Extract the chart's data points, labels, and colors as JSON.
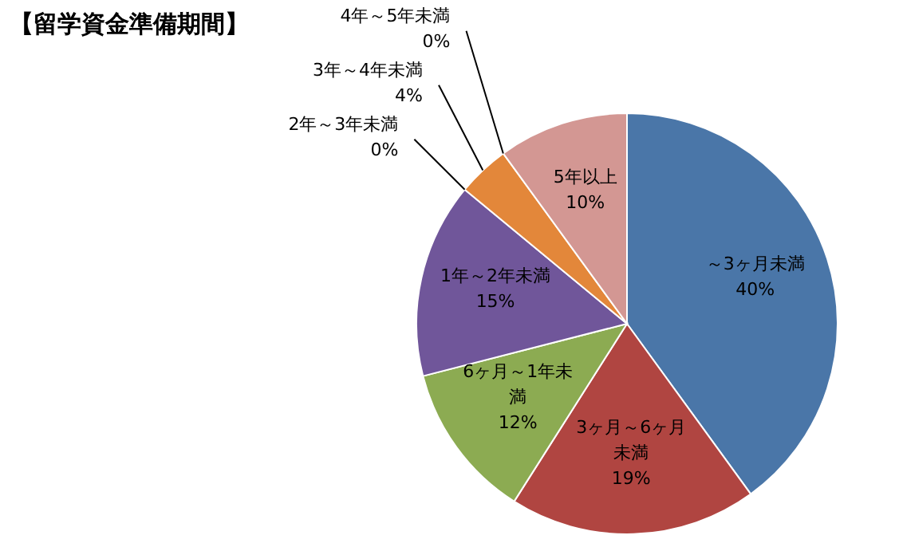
{
  "chart_data": {
    "type": "pie",
    "title": "【留学資金準備期間】",
    "categories": [
      "～3ヶ月未満",
      "3ヶ月～6ヶ月未満",
      "6ヶ月～1年未満",
      "1年～2年未満",
      "2年～3年未満",
      "3年～4年未満",
      "4年～5年未満",
      "5年以上"
    ],
    "values": [
      40,
      19,
      12,
      15,
      0,
      4,
      0,
      10
    ],
    "colors": [
      "#4a76a8",
      "#b04541",
      "#8cab52",
      "#70569a",
      null,
      "#e3873a",
      null,
      "#d39793"
    ],
    "value_labels": [
      "40%",
      "19%",
      "12%",
      "15%",
      "0%",
      "4%",
      "0%",
      "10%"
    ]
  }
}
